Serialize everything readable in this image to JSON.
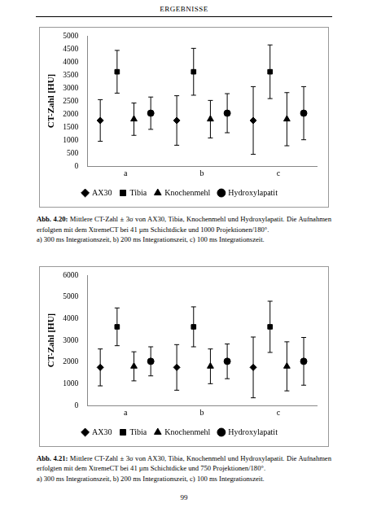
{
  "header": {
    "title": "ERGEBNISSE"
  },
  "chart_data": [
    {
      "type": "scatter",
      "categories": [
        "a",
        "b",
        "c"
      ],
      "y_label": "CT-Zahl [HU]",
      "ylim": [
        0,
        5000
      ],
      "yticks": [
        0,
        500,
        1000,
        1500,
        2000,
        2500,
        3000,
        3500,
        4000,
        4500,
        5000
      ],
      "grid": false,
      "legend": "bottom",
      "series": [
        {
          "name": "AX30",
          "color": "#000000",
          "marker": "diamond",
          "values": [
            1750,
            1750,
            1750
          ],
          "errors": [
            800,
            950,
            1300
          ]
        },
        {
          "name": "Tibia",
          "color": "#000000",
          "marker": "square",
          "values": [
            3620,
            3620,
            3620
          ],
          "errors": [
            820,
            900,
            1030
          ]
        },
        {
          "name": "Knochenmehl",
          "color": "#000000",
          "marker": "triangle",
          "values": [
            1800,
            1800,
            1800
          ],
          "errors": [
            620,
            720,
            1020
          ]
        },
        {
          "name": "Hydroxylapatit",
          "color": "#000000",
          "marker": "circle",
          "values": [
            2030,
            2030,
            2030
          ],
          "errors": [
            620,
            750,
            1020
          ]
        }
      ]
    },
    {
      "type": "scatter",
      "categories": [
        "a",
        "b",
        "c"
      ],
      "y_label": "CT-Zahl [HU]",
      "ylim": [
        0,
        6000
      ],
      "yticks": [
        0,
        1000,
        2000,
        3000,
        4000,
        5000,
        6000
      ],
      "grid": false,
      "legend": "bottom",
      "series": [
        {
          "name": "AX30",
          "color": "#000000",
          "marker": "diamond",
          "values": [
            1750,
            1750,
            1750
          ],
          "errors": [
            850,
            1050,
            1400
          ]
        },
        {
          "name": "Tibia",
          "color": "#000000",
          "marker": "square",
          "values": [
            3620,
            3620,
            3620
          ],
          "errors": [
            870,
            920,
            1180
          ]
        },
        {
          "name": "Knochenmehl",
          "color": "#000000",
          "marker": "triangle",
          "values": [
            1800,
            1800,
            1800
          ],
          "errors": [
            670,
            800,
            1130
          ]
        },
        {
          "name": "Hydroxylapatit",
          "color": "#000000",
          "marker": "circle",
          "values": [
            2030,
            2030,
            2030
          ],
          "errors": [
            670,
            800,
            1100
          ]
        }
      ]
    }
  ],
  "captions": [
    {
      "label": "Abb. 4.20:",
      "text": "Mittlere CT-Zahl ± 3σ von AX30, Tibia, Knochenmehl und Hydroxylapatit. Die Aufnahmen erfolgten mit dem XtremeCT bei 41 µm Schichtdicke und 1000 Projektionen/180°.",
      "detail": "a) 300 ms Integrationszeit, b) 200 ms Integrationszeit, c) 100 ms Integrationszeit."
    },
    {
      "label": "Abb. 4.21:",
      "text": "Mittlere CT-Zahl ± 3σ von AX30, Tibia, Knochenmehl und Hydroxylapatit. Die Aufnahmen erfolgten mit dem XtremeCT bei 41 µm Schichtdicke und 750 Projektionen/180°.",
      "detail": "a) 300 ms Integrationszeit, b) 200 ms Integrationszeit, c) 100 ms Integrationszeit."
    }
  ],
  "footer": {
    "page": "99"
  }
}
